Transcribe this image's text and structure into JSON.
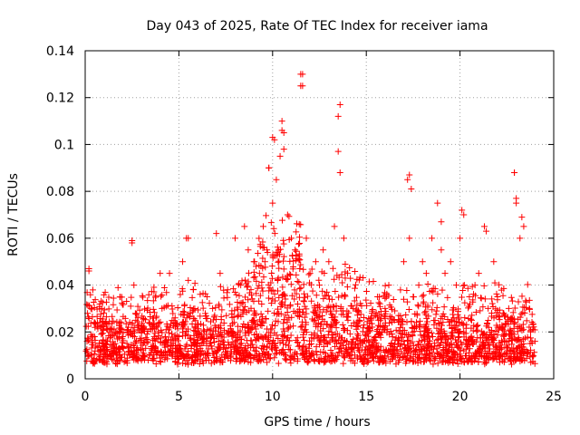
{
  "chart_data": {
    "type": "scatter",
    "title": "Day 043 of 2025, Rate Of TEC Index for receiver iama",
    "xlabel": "GPS time / hours",
    "ylabel": "ROTI / TECUs",
    "xlim": [
      0,
      25
    ],
    "ylim": [
      0,
      0.14
    ],
    "xticks": [
      0,
      5,
      10,
      15,
      20,
      25
    ],
    "yticks": [
      0,
      0.02,
      0.04,
      0.06,
      0.08,
      0.1,
      0.12,
      0.14
    ],
    "xtick_labels": [
      "0",
      "5",
      "10",
      "15",
      "20",
      "25"
    ],
    "ytick_labels": [
      "0",
      "0.02",
      "0.04",
      "0.06",
      "0.08",
      "0.1",
      "0.12",
      "0.14"
    ],
    "grid": true,
    "marker": "plus",
    "marker_color": "#ff0000",
    "series": [
      {
        "x": [
          0.1,
          0.2,
          0.3,
          0.5,
          0.8,
          1.0,
          1.3,
          1.6,
          2.0,
          2.3,
          2.5,
          2.6,
          2.7,
          3.0,
          3.4,
          3.8,
          4.1,
          4.5,
          4.8,
          5.0,
          5.2,
          5.4,
          5.5,
          5.6,
          6.0,
          6.5,
          6.8,
          7.0,
          7.2,
          7.6,
          8.0,
          8.3,
          8.5,
          8.7,
          9.0,
          9.3,
          9.5,
          9.7,
          9.8,
          10.0,
          10.1,
          10.2,
          10.4,
          10.5,
          10.6,
          10.8,
          11.0,
          11.2,
          11.5,
          11.6,
          11.8,
          12.0,
          12.3,
          12.5,
          12.7,
          13.0,
          13.3,
          13.5,
          13.6,
          13.8,
          14.0,
          14.3,
          14.6,
          15.0,
          15.3,
          15.6,
          16.0,
          16.2,
          16.5,
          17.0,
          17.2,
          17.3,
          17.5,
          17.8,
          18.0,
          18.2,
          18.5,
          18.8,
          19.0,
          19.2,
          19.5,
          19.8,
          20.0,
          20.2,
          20.5,
          20.8,
          21.0,
          21.3,
          21.5,
          21.8,
          22.0,
          22.3,
          22.6,
          22.9,
          23.0,
          23.2,
          23.4,
          23.7,
          24.0,
          0.2,
          2.5,
          4.0,
          5.5,
          9.8,
          10.0,
          10.5,
          10.6,
          11.5,
          11.6,
          13.5,
          13.6,
          17.3,
          17.4,
          22.9,
          23.0,
          23.3,
          19.0,
          20.1,
          21.4
        ],
        "y": [
          0.016,
          0.046,
          0.03,
          0.018,
          0.012,
          0.014,
          0.02,
          0.015,
          0.018,
          0.022,
          0.058,
          0.04,
          0.025,
          0.02,
          0.024,
          0.022,
          0.03,
          0.045,
          0.026,
          0.018,
          0.05,
          0.06,
          0.042,
          0.028,
          0.02,
          0.035,
          0.03,
          0.062,
          0.045,
          0.038,
          0.06,
          0.04,
          0.065,
          0.055,
          0.05,
          0.045,
          0.065,
          0.055,
          0.09,
          0.075,
          0.102,
          0.085,
          0.095,
          0.11,
          0.105,
          0.07,
          0.06,
          0.055,
          0.125,
          0.13,
          0.06,
          0.045,
          0.05,
          0.04,
          0.055,
          0.05,
          0.065,
          0.112,
          0.117,
          0.06,
          0.045,
          0.03,
          0.025,
          0.02,
          0.028,
          0.035,
          0.03,
          0.04,
          0.025,
          0.05,
          0.085,
          0.06,
          0.035,
          0.04,
          0.05,
          0.045,
          0.06,
          0.075,
          0.055,
          0.045,
          0.05,
          0.04,
          0.06,
          0.07,
          0.035,
          0.04,
          0.045,
          0.065,
          0.03,
          0.05,
          0.035,
          0.028,
          0.03,
          0.088,
          0.075,
          0.06,
          0.065,
          0.03,
          0.016,
          0.047,
          0.059,
          0.045,
          0.06,
          0.09,
          0.103,
          0.106,
          0.098,
          0.13,
          0.125,
          0.097,
          0.088,
          0.087,
          0.081,
          0.088,
          0.077,
          0.069,
          0.067,
          0.072,
          0.063
        ]
      }
    ],
    "density_note_free": true
  }
}
